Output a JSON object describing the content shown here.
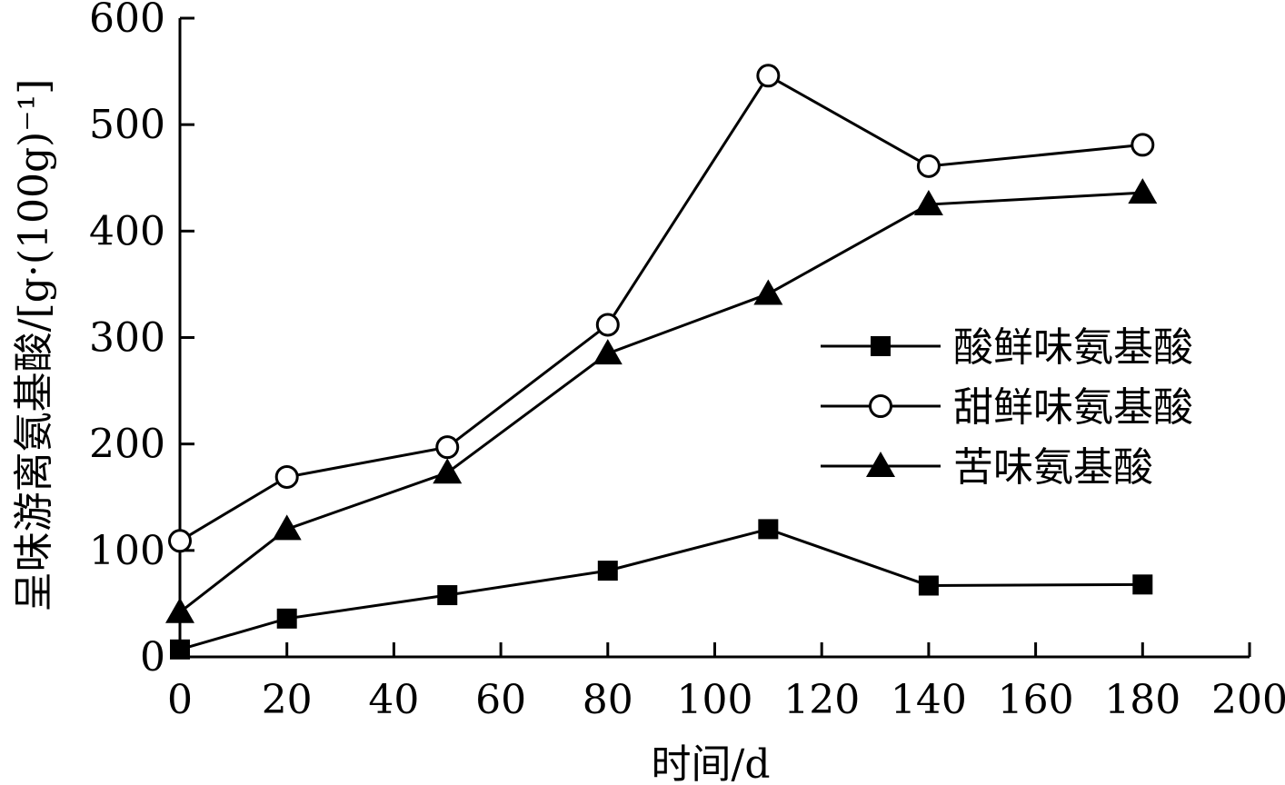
{
  "chart_data": {
    "type": "line",
    "title": "",
    "xlabel": "时间/d",
    "ylabel": "呈味游离氨基酸/[g·(100g)⁻¹]",
    "xlim": [
      0,
      200
    ],
    "ylim": [
      0,
      600
    ],
    "x_ticks": [
      0,
      20,
      40,
      60,
      80,
      100,
      120,
      140,
      160,
      180,
      200
    ],
    "y_ticks": [
      0,
      100,
      200,
      300,
      400,
      500,
      600
    ],
    "grid": false,
    "legend_position": "right-middle",
    "x": [
      0,
      20,
      50,
      80,
      110,
      140,
      180
    ],
    "series": [
      {
        "name": "酸鲜味氨基酸",
        "marker": "square",
        "values": [
          7,
          36,
          58,
          81,
          120,
          67,
          68
        ]
      },
      {
        "name": "甜鲜味氨基酸",
        "marker": "circle",
        "values": [
          109,
          169,
          197,
          312,
          546,
          461,
          481
        ]
      },
      {
        "name": "苦味氨基酸",
        "marker": "triangle",
        "values": [
          42,
          120,
          173,
          285,
          341,
          425,
          436
        ]
      }
    ]
  }
}
